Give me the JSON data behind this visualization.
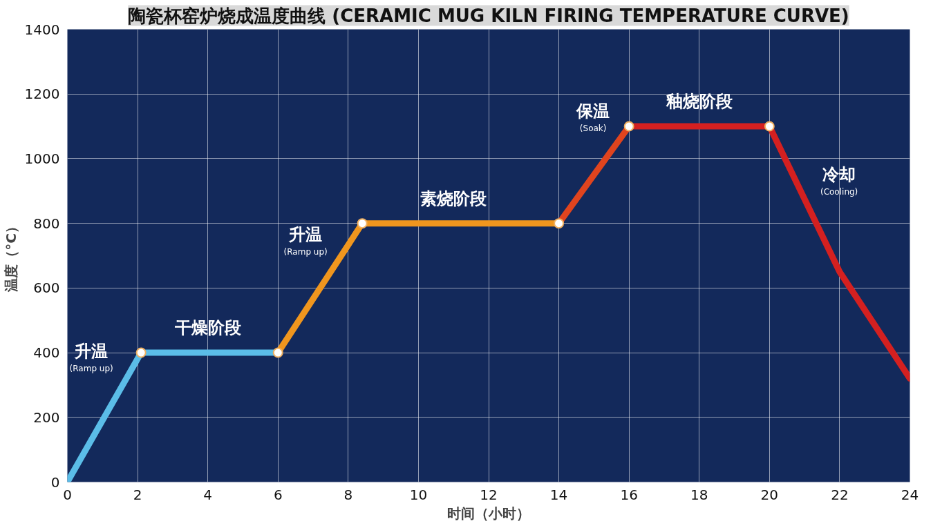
{
  "chart_data": {
    "type": "line",
    "title": "陶瓷杯窑炉烧成温度曲线 (CERAMIC MUG KILN FIRING TEMPERATURE CURVE)",
    "xlabel": "时间（小时）",
    "ylabel": "温度（°C）",
    "xlim": [
      0,
      24
    ],
    "xticks": [
      0,
      2,
      4,
      6,
      8,
      10,
      12,
      14,
      16,
      18,
      20,
      22,
      24
    ],
    "ylim": [
      0,
      1400
    ],
    "yticks": [
      0,
      200,
      400,
      600,
      800,
      1000,
      1200,
      1400
    ],
    "grid": true,
    "line_style": "solid",
    "series": [
      {
        "color": "#5bbde8",
        "x": [
          0,
          2.1,
          6
        ],
        "values": [
          0,
          400,
          400
        ]
      },
      {
        "color": "#f0961e",
        "x": [
          6,
          8.4,
          14
        ],
        "values": [
          400,
          800,
          800
        ]
      },
      {
        "color": "#e0441e",
        "x": [
          14,
          16
        ],
        "values": [
          800,
          1100
        ]
      },
      {
        "color": "#d42020",
        "x": [
          16,
          20,
          22,
          24
        ],
        "values": [
          1100,
          1100,
          650,
          320
        ]
      },
      {
        "type": "scatter",
        "marker": "circle",
        "color": "#ffffff",
        "x": [
          2.1,
          6,
          8.4,
          14,
          16,
          20
        ],
        "values": [
          400,
          400,
          800,
          800,
          1100,
          1100
        ]
      }
    ],
    "annotations": [
      {
        "text": "升温\n(Ramp up)",
        "x": 2.1,
        "y": 400
      },
      {
        "text": "干燥阶段",
        "x": 4,
        "y": 400
      },
      {
        "text": "升温\n(Ramp up)",
        "x": 8.4,
        "y": 800
      },
      {
        "text": "素烧阶段",
        "x": 11,
        "y": 800
      },
      {
        "text": "保温\n(Soak)",
        "x": 16,
        "y": 1100
      },
      {
        "text": "釉烧阶段",
        "x": 18,
        "y": 1100
      },
      {
        "text": "冷却\n(Cooling)",
        "x": 21,
        "y": 875
      }
    ]
  }
}
